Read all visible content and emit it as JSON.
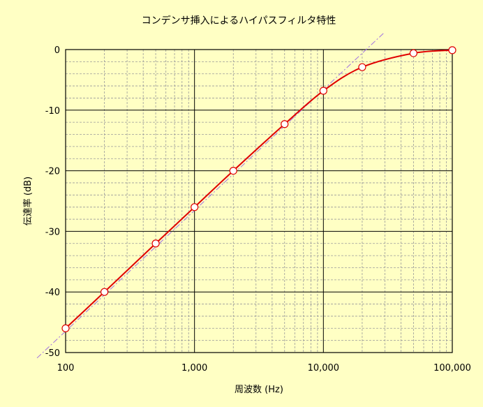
{
  "chart_data": {
    "type": "line",
    "title": "コンデンサ挿入によるハイパスフィルタ特性",
    "xlabel": "周波数 (Hz)",
    "ylabel": "伝達率 (dB)",
    "x_scale": "log",
    "xlim": [
      100,
      100000
    ],
    "ylim": [
      -50,
      0
    ],
    "grid": true,
    "x_ticks": [
      100,
      1000,
      10000,
      100000
    ],
    "x_tick_labels": [
      "100",
      "1,000",
      "10,000",
      "100,000"
    ],
    "y_ticks": [
      0,
      -10,
      -20,
      -30,
      -40,
      -50
    ],
    "y_tick_labels": [
      "0",
      "-10",
      "-20",
      "-30",
      "-40",
      "-50"
    ],
    "series": [
      {
        "x": [
          100,
          200,
          500,
          1000,
          2000,
          5000,
          10000,
          20000,
          50000,
          100000
        ],
        "y": [
          -46.0,
          -40.0,
          -32.0,
          -26.0,
          -20.0,
          -12.3,
          -6.8,
          -2.9,
          -0.6,
          -0.1
        ],
        "color": "#e00000",
        "marker": "circle"
      },
      {
        "x": [
          60,
          30000
        ],
        "y": [
          -50.9,
          2.9
        ],
        "color": "#a070e0",
        "style": "dash-dot"
      }
    ],
    "colors": {
      "background": "#ffffc4",
      "plot_area": "#ffffc4",
      "major_grid": "#000000",
      "minor_grid": "#9a9a9a",
      "curve": "#e00000",
      "marker_fill": "#ffffff",
      "asymptote": "#a070e0"
    }
  }
}
